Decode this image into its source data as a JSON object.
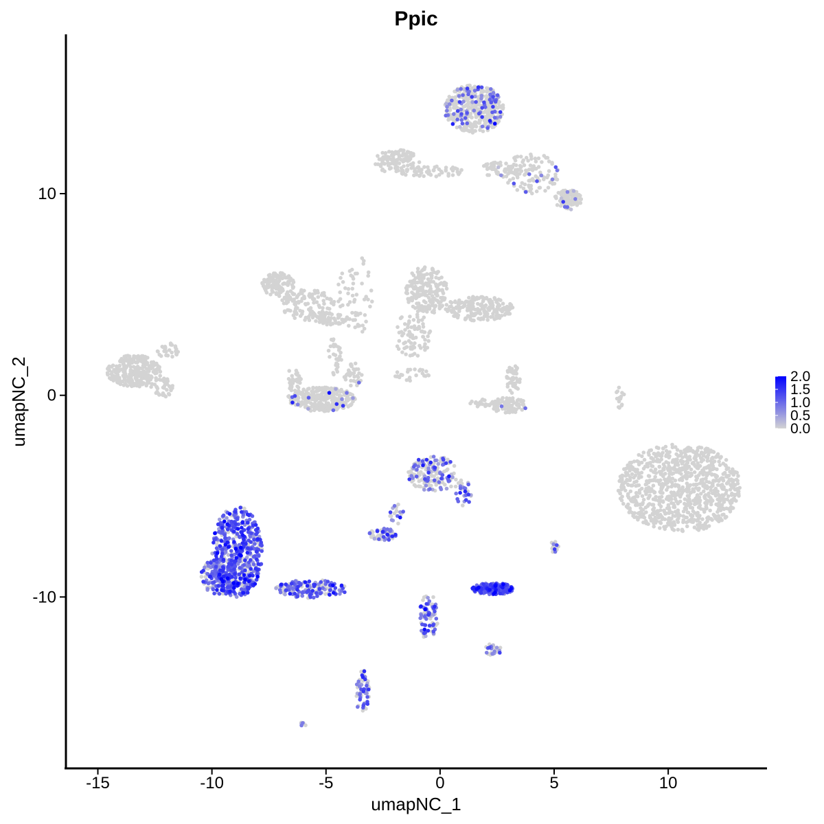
{
  "chart_data": {
    "type": "scatter",
    "title": "Ppic",
    "xlabel": "umapNC_1",
    "ylabel": "umapNC_2",
    "xlim": [
      -16.4,
      14.3
    ],
    "ylim": [
      -18.5,
      17.9
    ],
    "xticks": [
      -15,
      -10,
      -5,
      0,
      5,
      10
    ],
    "xtick_labels": [
      "-15",
      "-10",
      "-5",
      "0",
      "5",
      "10"
    ],
    "yticks": [
      -10,
      0,
      10
    ],
    "ytick_labels": [
      "-10",
      "0",
      "10"
    ],
    "grid": false,
    "legend": {
      "placement": "right",
      "labels": [
        "2.0",
        "1.5",
        "1.0",
        "0.5",
        "0.0"
      ],
      "min": 0.0,
      "max": 2.0
    },
    "color_low": "#d3d3d3",
    "color_high": "#0000ff",
    "clusters": [
      {
        "cx": 10.5,
        "cy": -4.6,
        "rx": 2.7,
        "ry": 2.2,
        "n": 900,
        "expr": 0.0
      },
      {
        "cx": 1.5,
        "cy": 14.2,
        "rx": 1.3,
        "ry": 1.2,
        "n": 420,
        "expr": 0.15
      },
      {
        "cx": 5.6,
        "cy": 9.7,
        "rx": 0.6,
        "ry": 0.5,
        "n": 90,
        "expr": 0.05
      },
      {
        "cx": 4.0,
        "cy": 11.0,
        "rx": 1.2,
        "ry": 1.0,
        "n": 110,
        "expr": 0.05
      },
      {
        "cx": -1.9,
        "cy": 11.6,
        "rx": 1.0,
        "ry": 0.6,
        "n": 100,
        "expr": 0.0
      },
      {
        "cx": -0.4,
        "cy": 11.1,
        "rx": 1.4,
        "ry": 0.3,
        "n": 60,
        "expr": 0.0
      },
      {
        "cx": 2.7,
        "cy": 11.2,
        "rx": 1.0,
        "ry": 0.4,
        "n": 50,
        "expr": 0.05
      },
      {
        "cx": -7.1,
        "cy": 5.5,
        "rx": 0.7,
        "ry": 0.6,
        "n": 110,
        "expr": 0.0
      },
      {
        "cx": -5.8,
        "cy": 4.5,
        "rx": 1.2,
        "ry": 0.8,
        "n": 120,
        "expr": 0.0
      },
      {
        "cx": -4.8,
        "cy": 3.8,
        "rx": 0.7,
        "ry": 0.3,
        "n": 50,
        "expr": 0.0
      },
      {
        "cx": -3.7,
        "cy": 5.0,
        "rx": 0.8,
        "ry": 2.0,
        "n": 60,
        "expr": 0.0
      },
      {
        "cx": -4.6,
        "cy": 2.0,
        "rx": 0.3,
        "ry": 1.0,
        "n": 30,
        "expr": 0.0
      },
      {
        "cx": -0.6,
        "cy": 5.2,
        "rx": 0.9,
        "ry": 1.2,
        "n": 200,
        "expr": 0.0
      },
      {
        "cx": 1.7,
        "cy": 4.3,
        "rx": 1.5,
        "ry": 0.6,
        "n": 200,
        "expr": 0.0
      },
      {
        "cx": -1.2,
        "cy": 3.0,
        "rx": 0.8,
        "ry": 1.1,
        "n": 80,
        "expr": 0.0
      },
      {
        "cx": -13.4,
        "cy": 1.2,
        "rx": 1.2,
        "ry": 0.8,
        "n": 280,
        "expr": 0.0
      },
      {
        "cx": -12.2,
        "cy": 0.4,
        "rx": 0.5,
        "ry": 0.5,
        "n": 40,
        "expr": 0.0
      },
      {
        "cx": -11.9,
        "cy": 2.2,
        "rx": 0.5,
        "ry": 0.4,
        "n": 30,
        "expr": 0.0
      },
      {
        "cx": -5.2,
        "cy": -0.2,
        "rx": 1.5,
        "ry": 0.6,
        "n": 320,
        "expr": 0.03
      },
      {
        "cx": -6.4,
        "cy": 0.8,
        "rx": 0.3,
        "ry": 0.6,
        "n": 35,
        "expr": 0.0
      },
      {
        "cx": -3.8,
        "cy": 1.0,
        "rx": 0.4,
        "ry": 0.6,
        "n": 35,
        "expr": 0.03
      },
      {
        "cx": 3.0,
        "cy": -0.5,
        "rx": 0.8,
        "ry": 0.4,
        "n": 80,
        "expr": 0.03
      },
      {
        "cx": 3.2,
        "cy": 0.8,
        "rx": 0.3,
        "ry": 0.7,
        "n": 50,
        "expr": 0.0
      },
      {
        "cx": 1.9,
        "cy": -0.4,
        "rx": 0.6,
        "ry": 0.2,
        "n": 25,
        "expr": 0.0
      },
      {
        "cx": -1.1,
        "cy": 1.0,
        "rx": 0.9,
        "ry": 0.3,
        "n": 25,
        "expr": 0.0
      },
      {
        "cx": 7.9,
        "cy": -0.1,
        "rx": 0.2,
        "ry": 0.6,
        "n": 15,
        "expr": 0.0
      },
      {
        "cx": -8.9,
        "cy": -7.8,
        "rx": 1.1,
        "ry": 2.3,
        "n": 550,
        "expr": 0.55
      },
      {
        "cx": -9.7,
        "cy": -9.0,
        "rx": 0.8,
        "ry": 0.9,
        "n": 160,
        "expr": 0.5
      },
      {
        "cx": -5.6,
        "cy": -9.6,
        "rx": 1.6,
        "ry": 0.45,
        "n": 160,
        "expr": 0.45
      },
      {
        "cx": -0.3,
        "cy": -3.9,
        "rx": 1.1,
        "ry": 0.9,
        "n": 160,
        "expr": 0.28
      },
      {
        "cx": 1.0,
        "cy": -4.9,
        "rx": 0.4,
        "ry": 0.7,
        "n": 30,
        "expr": 0.35
      },
      {
        "cx": -2.5,
        "cy": -6.9,
        "rx": 0.6,
        "ry": 0.3,
        "n": 60,
        "expr": 0.3
      },
      {
        "cx": -1.9,
        "cy": -5.9,
        "rx": 0.3,
        "ry": 0.5,
        "n": 20,
        "expr": 0.3
      },
      {
        "cx": 2.3,
        "cy": -9.6,
        "rx": 0.9,
        "ry": 0.3,
        "n": 200,
        "expr": 0.65
      },
      {
        "cx": -0.5,
        "cy": -11.0,
        "rx": 0.4,
        "ry": 1.2,
        "n": 80,
        "expr": 0.35
      },
      {
        "cx": 2.3,
        "cy": -12.6,
        "rx": 0.4,
        "ry": 0.3,
        "n": 25,
        "expr": 0.35
      },
      {
        "cx": -3.4,
        "cy": -14.7,
        "rx": 0.3,
        "ry": 1.1,
        "n": 60,
        "expr": 0.3
      },
      {
        "cx": 5.0,
        "cy": -7.5,
        "rx": 0.2,
        "ry": 0.3,
        "n": 15,
        "expr": 0.3
      },
      {
        "cx": -6.0,
        "cy": -16.3,
        "rx": 0.15,
        "ry": 0.1,
        "n": 6,
        "expr": 0.4
      }
    ]
  }
}
